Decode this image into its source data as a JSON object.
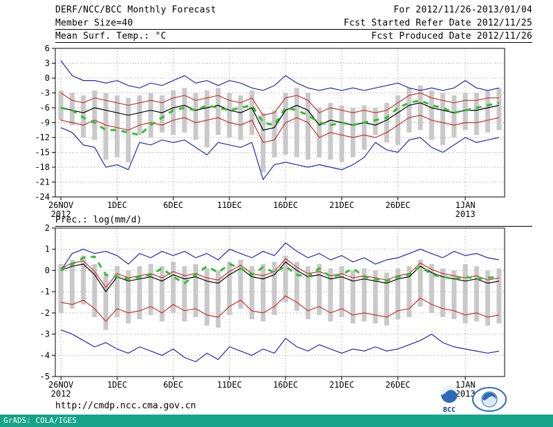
{
  "header": {
    "title": "DERF/NCC/BCC Monthly Forecast",
    "date_range": "For 2012/11/26-2013/01/04",
    "member_size": "Member Size=40",
    "fcst_started": "Fcst Started Refer Date 2012/11/25",
    "fcst_produced": "Fcst Produced Date 2012/11/26"
  },
  "footer": {
    "url": "http://cmdp.ncc.cma.gov.cn",
    "grads_credit": "GrADS: COLA/IGES",
    "bcc_logo_label": "BCC"
  },
  "colors": {
    "strip": "#17a389",
    "bar": "#c9c9c9",
    "blue": "#2424b4",
    "red": "#cc3030",
    "green": "#2fbf2f",
    "black": "#000000",
    "logo_blue": "#2b6bb8"
  },
  "chart_data": [
    {
      "type": "line",
      "title": "Mean Surf. Temp.: °C",
      "ylim": [
        -24,
        6
      ],
      "yticks": [
        6,
        3,
        0,
        -3,
        -6,
        -9,
        -12,
        -15,
        -18,
        -21,
        -24
      ],
      "x_count": 40,
      "xticks": [
        {
          "pos": 0,
          "label": "26NOV",
          "sub": "2012"
        },
        {
          "pos": 5,
          "label": "1DEC"
        },
        {
          "pos": 10,
          "label": "6DEC"
        },
        {
          "pos": 15,
          "label": "11DEC"
        },
        {
          "pos": 20,
          "label": "16DEC"
        },
        {
          "pos": 25,
          "label": "21DEC"
        },
        {
          "pos": 30,
          "label": "26DEC"
        },
        {
          "pos": 36,
          "label": "1JAN",
          "sub": "2013"
        }
      ],
      "bars": {
        "name": "ensemble-spread",
        "color": "#c9c9c9",
        "top": [
          -2.5,
          -3.0,
          -3.5,
          -2.5,
          -3.0,
          -3.5,
          -4.0,
          -3.5,
          -3.0,
          -3.5,
          -2.5,
          -2.0,
          -3.0,
          -2.5,
          -2.0,
          -3.0,
          -3.5,
          -2.5,
          -7.0,
          -6.5,
          -3.0,
          -2.0,
          -3.0,
          -6.0,
          -5.0,
          -5.5,
          -6.0,
          -5.5,
          -6.0,
          -5.0,
          -3.5,
          -2.0,
          -1.5,
          -2.5,
          -3.0,
          -3.5,
          -3.0,
          -3.0,
          -2.5,
          -2.0
        ],
        "bottom": [
          -8.5,
          -9.5,
          -12.0,
          -12.5,
          -16.5,
          -16.0,
          -17.0,
          -11.5,
          -12.0,
          -11.0,
          -11.5,
          -11.0,
          -12.5,
          -14.0,
          -11.5,
          -12.0,
          -12.5,
          -11.5,
          -19.0,
          -16.0,
          -15.5,
          -16.0,
          -16.5,
          -16.0,
          -16.5,
          -17.0,
          -16.0,
          -14.5,
          -11.5,
          -13.0,
          -13.5,
          -11.0,
          -10.5,
          -12.5,
          -13.5,
          -12.0,
          -10.5,
          -11.5,
          -11.0,
          -10.5
        ]
      },
      "series": [
        {
          "name": "ensemble-max",
          "color": "#2424b4",
          "style": "line",
          "values": [
            3.5,
            0.5,
            -0.5,
            -0.5,
            -1.0,
            -0.5,
            -1.5,
            -2.0,
            -1.0,
            -1.5,
            -0.5,
            0.5,
            -1.0,
            -0.5,
            -1.5,
            -0.5,
            -1.0,
            -2.0,
            -2.5,
            -1.5,
            0.5,
            -1.0,
            -2.0,
            -2.5,
            -2.0,
            -2.5,
            -2.0,
            -2.5,
            -2.0,
            -1.5,
            -1.0,
            -2.0,
            -2.5,
            -2.0,
            -2.5,
            -2.0,
            -0.5,
            -2.0,
            -2.5,
            -2.0
          ]
        },
        {
          "name": "ensemble-min",
          "color": "#2424b4",
          "style": "line",
          "values": [
            -10.0,
            -11.0,
            -13.5,
            -14.0,
            -18.0,
            -17.5,
            -18.5,
            -13.0,
            -13.5,
            -12.5,
            -13.0,
            -12.5,
            -14.0,
            -15.5,
            -13.0,
            -13.5,
            -14.0,
            -13.0,
            -20.5,
            -17.5,
            -17.0,
            -17.5,
            -18.0,
            -17.5,
            -18.0,
            -18.5,
            -17.5,
            -16.0,
            -13.0,
            -14.5,
            -15.0,
            -12.5,
            -12.0,
            -14.0,
            -15.0,
            -13.5,
            -12.0,
            -13.0,
            -12.5,
            -12.0
          ]
        },
        {
          "name": "upper-quartile",
          "color": "#cc3030",
          "style": "line",
          "values": [
            -3.0,
            -4.5,
            -5.0,
            -4.0,
            -4.5,
            -5.0,
            -5.5,
            -5.0,
            -4.5,
            -5.0,
            -4.0,
            -3.5,
            -4.5,
            -4.0,
            -3.5,
            -4.5,
            -5.0,
            -4.0,
            -7.5,
            -7.0,
            -4.0,
            -3.5,
            -4.5,
            -7.0,
            -6.0,
            -6.5,
            -7.0,
            -6.5,
            -7.0,
            -6.5,
            -5.0,
            -3.5,
            -3.0,
            -4.0,
            -4.5,
            -5.0,
            -4.5,
            -4.5,
            -4.0,
            -4.0
          ]
        },
        {
          "name": "lower-quartile",
          "color": "#cc3030",
          "style": "line",
          "values": [
            -8.5,
            -9.0,
            -9.5,
            -8.5,
            -9.5,
            -10.0,
            -10.5,
            -9.5,
            -9.0,
            -9.5,
            -8.5,
            -8.0,
            -9.0,
            -8.5,
            -8.0,
            -9.0,
            -9.5,
            -8.5,
            -13.0,
            -12.5,
            -9.0,
            -8.0,
            -9.0,
            -12.0,
            -11.0,
            -11.5,
            -12.0,
            -11.5,
            -12.0,
            -11.0,
            -9.5,
            -8.0,
            -7.5,
            -8.5,
            -9.0,
            -9.5,
            -9.0,
            -9.0,
            -8.5,
            -8.0
          ]
        },
        {
          "name": "ensemble-mean",
          "color": "#000000",
          "style": "line",
          "values": [
            -6.0,
            -6.5,
            -7.0,
            -6.0,
            -6.5,
            -7.0,
            -7.5,
            -7.0,
            -6.5,
            -7.0,
            -6.0,
            -5.5,
            -6.5,
            -6.0,
            -5.5,
            -6.5,
            -7.0,
            -6.0,
            -10.5,
            -10.0,
            -6.5,
            -5.5,
            -6.5,
            -9.5,
            -8.5,
            -9.0,
            -9.5,
            -9.0,
            -9.5,
            -8.5,
            -7.0,
            -5.5,
            -5.0,
            -6.0,
            -6.5,
            -7.0,
            -6.5,
            -6.5,
            -6.0,
            -5.5
          ]
        },
        {
          "name": "observation",
          "color": "#2fbf2f",
          "style": "dash",
          "values": [
            -6.0,
            -6.5,
            -8.0,
            -9.0,
            -10.5,
            -10.5,
            -11.0,
            -11.5,
            -9.5,
            -8.0,
            -6.5,
            -6.0,
            -6.5,
            -5.5,
            -6.0,
            -6.5,
            -6.0,
            -5.5,
            -9.0,
            -9.5,
            -6.0,
            -6.5,
            -7.5,
            -9.0,
            -9.5,
            -9.0,
            -9.5,
            -9.0,
            -8.5,
            -8.0,
            -6.0,
            -5.0,
            -4.5,
            -5.5,
            -6.0,
            -7.0,
            -6.5,
            -6.0,
            -5.5,
            -5.0
          ]
        }
      ]
    },
    {
      "type": "line",
      "title": "Prec.: log(mm/d)",
      "ylim": [
        -5,
        2
      ],
      "yticks": [
        2,
        1,
        0,
        -1,
        -2,
        -3,
        -4,
        -5
      ],
      "x_count": 40,
      "xticks": [
        {
          "pos": 0,
          "label": "26NOV",
          "sub": "2012"
        },
        {
          "pos": 5,
          "label": "1DEC"
        },
        {
          "pos": 10,
          "label": "6DEC"
        },
        {
          "pos": 15,
          "label": "11DEC"
        },
        {
          "pos": 20,
          "label": "16DEC"
        },
        {
          "pos": 25,
          "label": "21DEC"
        },
        {
          "pos": 30,
          "label": "26DEC"
        },
        {
          "pos": 36,
          "label": "1JAN",
          "sub": "2013"
        }
      ],
      "bars": {
        "name": "ensemble-spread",
        "color": "#c9c9c9",
        "top": [
          0.3,
          0.5,
          0.7,
          0.3,
          -0.2,
          0.2,
          0.0,
          0.2,
          0.3,
          0.2,
          0.4,
          0.2,
          0.3,
          0.1,
          0.0,
          0.4,
          0.5,
          0.2,
          0.3,
          0.4,
          0.7,
          0.4,
          0.2,
          0.3,
          0.1,
          0.2,
          0.0,
          0.1,
          0.0,
          -0.1,
          0.1,
          0.2,
          0.5,
          0.3,
          0.1,
          0.0,
          0.3,
          0.2,
          0.0,
          0.1
        ],
        "bottom": [
          -2.0,
          -1.8,
          -1.6,
          -2.2,
          -2.8,
          -2.2,
          -2.5,
          -2.3,
          -2.1,
          -2.4,
          -2.0,
          -2.4,
          -2.2,
          -2.6,
          -2.7,
          -2.1,
          -1.8,
          -2.3,
          -2.4,
          -2.1,
          -1.5,
          -1.9,
          -2.3,
          -2.1,
          -2.4,
          -2.2,
          -2.5,
          -2.4,
          -2.5,
          -2.6,
          -2.3,
          -2.2,
          -1.7,
          -2.0,
          -2.2,
          -2.3,
          -2.5,
          -2.4,
          -2.6,
          -2.5
        ]
      },
      "series": [
        {
          "name": "ensemble-max",
          "color": "#2424b4",
          "style": "line",
          "values": [
            0.0,
            0.8,
            1.0,
            0.8,
            0.9,
            0.7,
            0.3,
            0.8,
            0.6,
            0.9,
            0.7,
            0.9,
            0.6,
            0.8,
            0.5,
            1.0,
            0.8,
            0.6,
            0.9,
            0.7,
            1.3,
            0.9,
            0.6,
            0.8,
            0.5,
            0.7,
            0.4,
            0.6,
            0.3,
            0.5,
            0.6,
            0.8,
            1.0,
            0.8,
            0.6,
            0.9,
            0.7,
            0.8,
            0.6,
            0.5
          ]
        },
        {
          "name": "ensemble-min",
          "color": "#2424b4",
          "style": "line",
          "values": [
            -2.8,
            -3.0,
            -3.3,
            -3.6,
            -3.4,
            -3.7,
            -3.9,
            -3.6,
            -3.8,
            -4.0,
            -3.7,
            -4.1,
            -4.3,
            -3.9,
            -4.2,
            -3.6,
            -3.8,
            -4.0,
            -3.7,
            -3.9,
            -3.2,
            -3.6,
            -3.8,
            -3.5,
            -3.7,
            -3.9,
            -3.7,
            -3.8,
            -3.6,
            -3.8,
            -3.7,
            -3.5,
            -3.3,
            -3.0,
            -3.4,
            -3.6,
            -3.7,
            -3.8,
            -3.9,
            -3.8
          ]
        },
        {
          "name": "upper-quartile",
          "color": "#cc3030",
          "style": "line",
          "values": [
            0.1,
            0.35,
            0.45,
            -0.05,
            -0.8,
            -0.15,
            -0.35,
            -0.25,
            -0.15,
            -0.35,
            -0.05,
            -0.25,
            -0.15,
            -0.35,
            -0.45,
            -0.05,
            0.25,
            -0.15,
            -0.25,
            -0.05,
            0.55,
            0.15,
            -0.15,
            -0.05,
            -0.25,
            -0.15,
            -0.35,
            -0.25,
            -0.35,
            -0.45,
            -0.25,
            -0.15,
            0.35,
            0.05,
            -0.15,
            -0.25,
            -0.35,
            -0.25,
            -0.45,
            -0.35
          ]
        },
        {
          "name": "lower-quartile",
          "color": "#cc3030",
          "style": "line",
          "values": [
            -1.5,
            -1.6,
            -1.4,
            -1.8,
            -2.4,
            -1.8,
            -2.0,
            -1.9,
            -1.7,
            -2.0,
            -1.6,
            -1.9,
            -1.8,
            -2.1,
            -2.2,
            -1.7,
            -1.4,
            -1.9,
            -2.0,
            -1.7,
            -1.2,
            -1.5,
            -1.9,
            -1.7,
            -2.0,
            -1.8,
            -2.1,
            -2.0,
            -2.1,
            -2.2,
            -1.9,
            -1.8,
            -1.3,
            -1.6,
            -1.8,
            -1.9,
            -2.1,
            -2.0,
            -2.2,
            -2.1
          ]
        },
        {
          "name": "ensemble-mean",
          "color": "#000000",
          "style": "line",
          "values": [
            0.0,
            0.2,
            0.3,
            -0.2,
            -1.0,
            -0.3,
            -0.5,
            -0.4,
            -0.3,
            -0.5,
            -0.2,
            -0.4,
            -0.3,
            -0.5,
            -0.6,
            -0.2,
            0.1,
            -0.3,
            -0.4,
            -0.2,
            0.4,
            0.0,
            -0.3,
            -0.2,
            -0.4,
            -0.3,
            -0.5,
            -0.4,
            -0.5,
            -0.6,
            -0.4,
            -0.3,
            0.2,
            -0.1,
            -0.3,
            -0.4,
            -0.5,
            -0.4,
            -0.6,
            -0.5
          ]
        },
        {
          "name": "observation",
          "color": "#2fbf2f",
          "style": "dash",
          "values": [
            0.0,
            0.3,
            0.6,
            0.65,
            -0.2,
            -0.3,
            -0.4,
            -0.3,
            -0.2,
            0.1,
            -0.3,
            -0.6,
            -0.2,
            0.2,
            -0.1,
            0.3,
            0.1,
            -0.2,
            0.15,
            -0.1,
            0.2,
            -0.2,
            -0.3,
            0.1,
            -0.3,
            -0.2,
            0.1,
            -0.3,
            -0.4,
            -0.5,
            -0.3,
            -0.2,
            0.2,
            -0.2,
            -0.3,
            -0.4,
            -0.3,
            -0.4,
            -0.35,
            -0.3
          ]
        }
      ]
    }
  ]
}
